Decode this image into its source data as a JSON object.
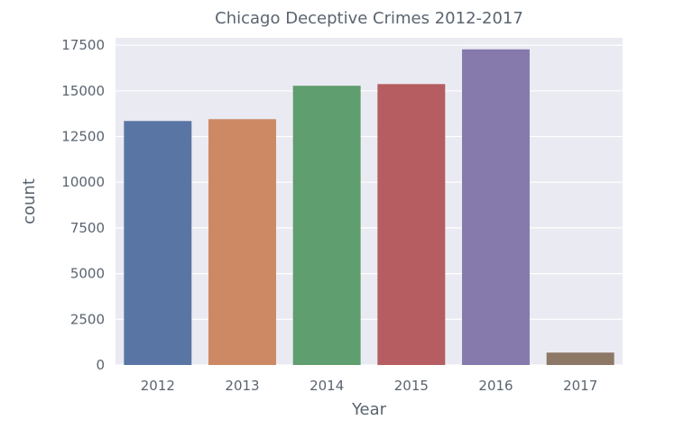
{
  "chart_data": {
    "type": "bar",
    "title": "Chicago Deceptive Crimes 2012-2017",
    "xlabel": "Year",
    "ylabel": "count",
    "categories": [
      "2012",
      "2013",
      "2014",
      "2015",
      "2016",
      "2017"
    ],
    "values": [
      13350,
      13450,
      15280,
      15370,
      17270,
      680
    ],
    "colors": [
      "#5975a4",
      "#cc8963",
      "#5f9e6e",
      "#b55d60",
      "#857aab",
      "#8d7866"
    ],
    "ylim": [
      0,
      17900
    ],
    "yticks": [
      0,
      2500,
      5000,
      7500,
      10000,
      12500,
      15000,
      17500
    ],
    "grid": true,
    "background": "#eaeaf2",
    "legend": "none"
  }
}
